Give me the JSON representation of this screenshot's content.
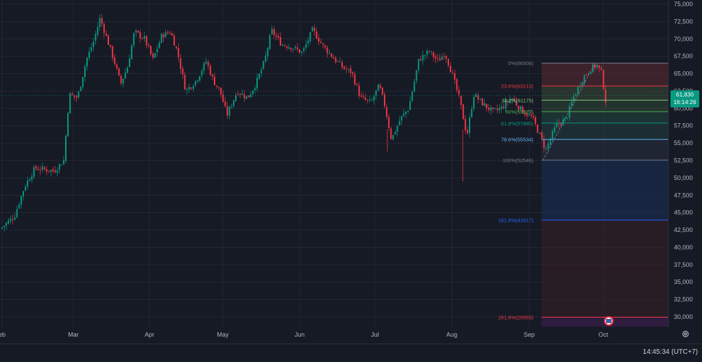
{
  "price_axis": {
    "ticks": [
      "75,000",
      "72,500",
      "70,000",
      "67,500",
      "65,000",
      "62,500",
      "60,000",
      "57,500",
      "55,000",
      "52,500",
      "50,000",
      "47,500",
      "45,000",
      "42,500",
      "40,000",
      "37,500",
      "35,000",
      "32,500",
      "30,000"
    ]
  },
  "time_axis": {
    "labels": [
      "eb",
      "Mar",
      "Apr",
      "May",
      "Jun",
      "Jul",
      "Aug",
      "Sep",
      "Oct"
    ]
  },
  "last_price": {
    "price": "61,830",
    "countdown": "16:14:26"
  },
  "fib_levels": [
    {
      "label": "0%(66508)",
      "price": 66508,
      "color": "#787b86"
    },
    {
      "label": "23.6%(63213)",
      "price": 63213,
      "color": "#f23645"
    },
    {
      "label": "38.2%(61175)",
      "price": 61175,
      "color": "#81c784"
    },
    {
      "label": "50%(59527)",
      "price": 59527,
      "color": "#4caf50"
    },
    {
      "label": "61.8%(57880)",
      "price": 57880,
      "color": "#089981"
    },
    {
      "label": "78.6%(55534)",
      "price": 55534,
      "color": "#64b5f6"
    },
    {
      "label": "100%(52546)",
      "price": 52546,
      "color": "#787b86"
    },
    {
      "label": "161.8%(43917)",
      "price": 43917,
      "color": "#2962ff"
    },
    {
      "label": "261.8%(29955)",
      "price": 29955,
      "color": "#f23645"
    }
  ],
  "clock": {
    "time": "14:45:34",
    "timezone": "(UTC+7)"
  },
  "colors": {
    "up": "#089981",
    "down": "#f23645",
    "background": "#161a25",
    "grid": "#232733"
  },
  "icons": {
    "settings": "gear-icon",
    "event": "us-flag-event-icon"
  }
}
